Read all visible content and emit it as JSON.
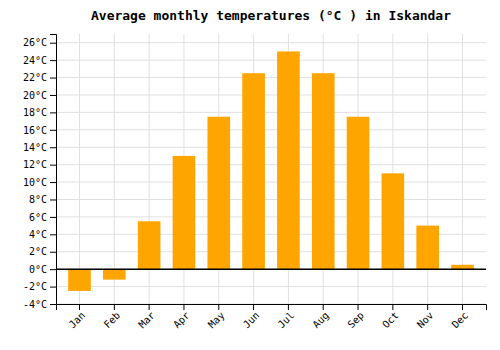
{
  "chart_data": {
    "type": "bar",
    "title": "Average monthly temperatures (°C ) in Iskandar",
    "categories": [
      "Jan",
      "Feb",
      "Mar",
      "Apr",
      "May",
      "Jun",
      "Jul",
      "Aug",
      "Sep",
      "Oct",
      "Nov",
      "Dec"
    ],
    "values": [
      -2.5,
      -1.2,
      5.5,
      13,
      17.5,
      22.5,
      25,
      22.5,
      17.5,
      11,
      5,
      0.5
    ],
    "color": "#FFA500",
    "ylim": [
      -4,
      27
    ],
    "yticks": [
      {
        "value": -4,
        "label": "-4°C"
      },
      {
        "value": -2,
        "label": "-2°C"
      },
      {
        "value": 0,
        "label": "0°C"
      },
      {
        "value": 2,
        "label": "2°C"
      },
      {
        "value": 4,
        "label": "4°C"
      },
      {
        "value": 6,
        "label": "6°C"
      },
      {
        "value": 8,
        "label": "8°C"
      },
      {
        "value": 10,
        "label": "10°C"
      },
      {
        "value": 12,
        "label": "12°C"
      },
      {
        "value": 14,
        "label": "14°C"
      },
      {
        "value": 16,
        "label": "16°C"
      },
      {
        "value": 18,
        "label": "18°C"
      },
      {
        "value": 20,
        "label": "20°C"
      },
      {
        "value": 22,
        "label": "22°C"
      },
      {
        "value": 24,
        "label": "24°C"
      },
      {
        "value": 26,
        "label": "26°C"
      }
    ],
    "grid": true
  }
}
